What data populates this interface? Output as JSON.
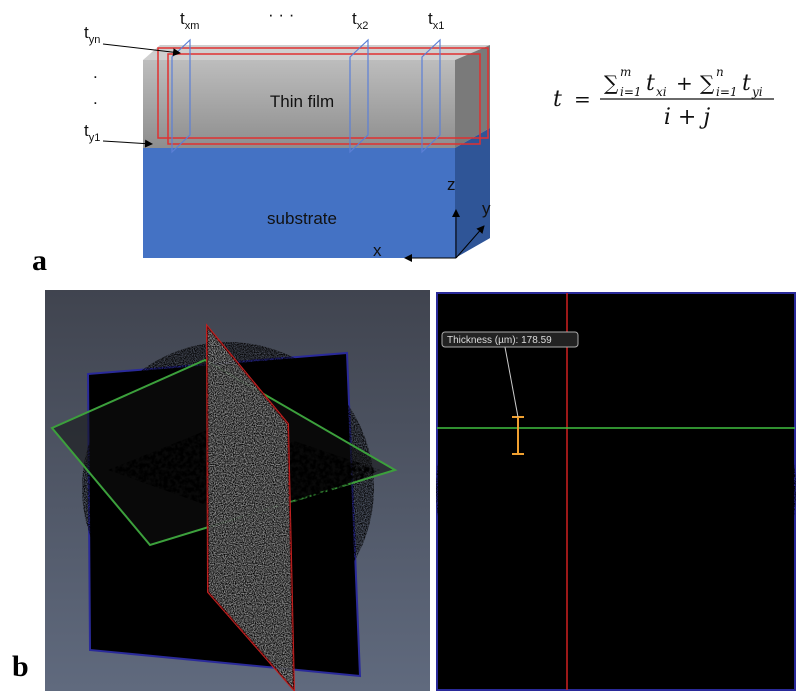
{
  "panel_a": {
    "label": "a",
    "thickness_labels": {
      "yn": {
        "base": "t",
        "sub": "yn"
      },
      "xm": {
        "base": "t",
        "sub": "xm"
      },
      "x2": {
        "base": "t",
        "sub": "x2"
      },
      "x1": {
        "base": "t",
        "sub": "x1"
      },
      "y1": {
        "base": "t",
        "sub": "y1"
      }
    },
    "ellipsis": "· · ·",
    "vertical_dots": [
      ".",
      "."
    ],
    "layers": [
      "Thin film",
      "substrate"
    ],
    "axes": [
      "z",
      "y",
      "x"
    ],
    "formula": {
      "lhs": "t",
      "eq": "=",
      "sum1": {
        "symbol": "∑",
        "upper": "m",
        "lower": "i=1"
      },
      "term1": {
        "var": "t",
        "sub": "xi"
      },
      "plus": "+",
      "sum2": {
        "symbol": "∑",
        "upper": "n",
        "lower": "i=1"
      },
      "term2": {
        "var": "t",
        "sub": "yi"
      },
      "denominator": "i + j"
    }
  },
  "panel_b": {
    "label": "b",
    "measurement": "Thickness (µm): 178.59"
  }
}
